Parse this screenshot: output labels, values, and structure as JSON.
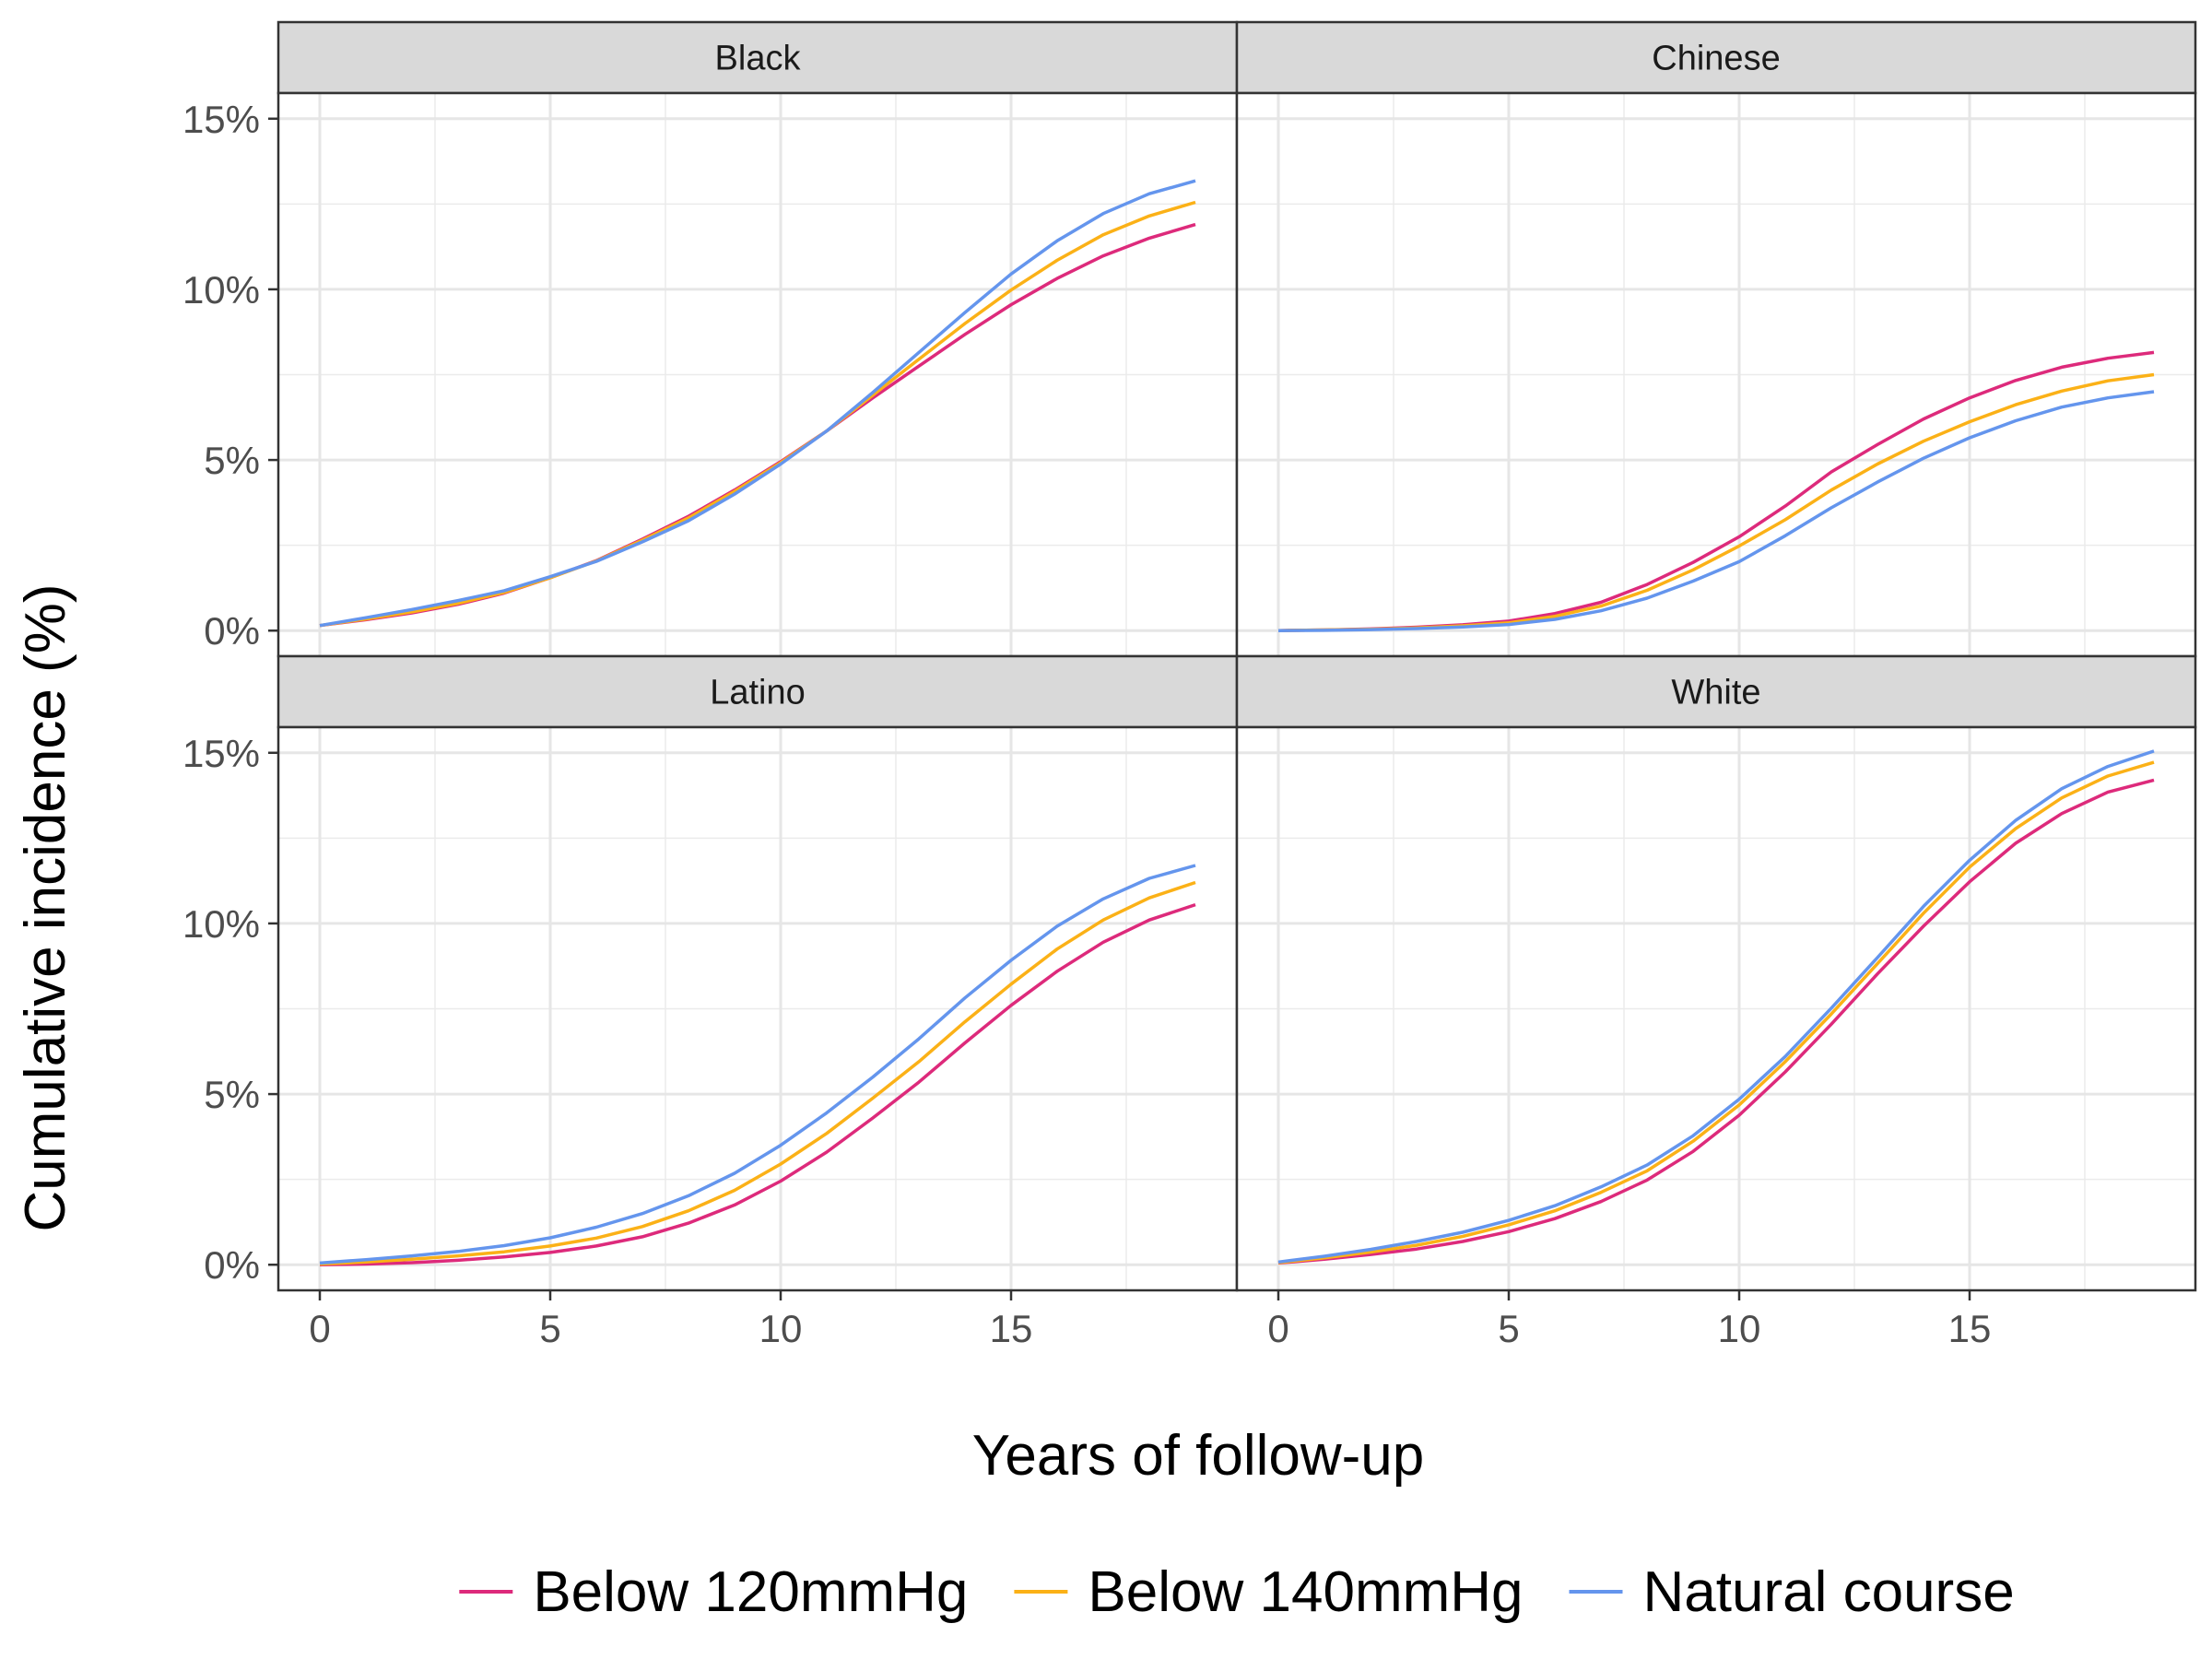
{
  "chart_data": {
    "type": "line",
    "xlabel": "Years of follow-up",
    "ylabel": "Cumulative incidence (%)",
    "xlim": [
      -0.9,
      19.9
    ],
    "ylim": [
      -0.75,
      15.75
    ],
    "x_ticks": [
      0,
      5,
      10,
      15
    ],
    "x_tick_labels": [
      "0",
      "5",
      "10",
      "15"
    ],
    "y_ticks": [
      0,
      5,
      10,
      15
    ],
    "y_tick_labels": [
      "0%",
      "5%",
      "10%",
      "15%"
    ],
    "grid": true,
    "legend_position": "bottom",
    "x": [
      0,
      1,
      2,
      3,
      4,
      5,
      6,
      7,
      8,
      9,
      10,
      11,
      12,
      13,
      14,
      15,
      16,
      17,
      18,
      19
    ],
    "series_styles": [
      {
        "name": "Below 120mmHg",
        "color": "#dd2a7b"
      },
      {
        "name": "Below 140mmHg",
        "color": "#fbb117"
      },
      {
        "name": "Natural course",
        "color": "#6495ed"
      }
    ],
    "panels": [
      {
        "title": "Black",
        "series": [
          {
            "name": "Below 120mmHg",
            "values": [
              0.15,
              0.32,
              0.52,
              0.77,
              1.1,
              1.55,
              2.05,
              2.68,
              3.35,
              4.12,
              4.95,
              5.85,
              6.82,
              7.75,
              8.68,
              9.55,
              10.32,
              10.98,
              11.5,
              11.9
            ]
          },
          {
            "name": "Below 140mmHg",
            "values": [
              0.15,
              0.34,
              0.55,
              0.8,
              1.12,
              1.55,
              2.04,
              2.65,
              3.3,
              4.08,
              4.92,
              5.85,
              6.9,
              7.95,
              9.0,
              9.98,
              10.85,
              11.6,
              12.15,
              12.55
            ]
          },
          {
            "name": "Natural course",
            "values": [
              0.15,
              0.38,
              0.62,
              0.88,
              1.17,
              1.58,
              2.03,
              2.6,
              3.22,
              4.0,
              4.88,
              5.85,
              6.98,
              8.15,
              9.32,
              10.45,
              11.42,
              12.22,
              12.8,
              13.18
            ]
          }
        ]
      },
      {
        "title": "Chinese",
        "series": [
          {
            "name": "Below 120mmHg",
            "values": [
              0.0,
              0.02,
              0.05,
              0.1,
              0.17,
              0.28,
              0.5,
              0.83,
              1.35,
              2.0,
              2.75,
              3.65,
              4.65,
              5.45,
              6.2,
              6.82,
              7.33,
              7.72,
              7.98,
              8.15
            ]
          },
          {
            "name": "Below 140mmHg",
            "values": [
              0.0,
              0.02,
              0.04,
              0.08,
              0.14,
              0.23,
              0.42,
              0.72,
              1.18,
              1.78,
              2.48,
              3.25,
              4.12,
              4.88,
              5.55,
              6.12,
              6.62,
              7.02,
              7.32,
              7.5
            ]
          },
          {
            "name": "Natural course",
            "values": [
              0.0,
              0.01,
              0.03,
              0.06,
              0.11,
              0.18,
              0.33,
              0.58,
              0.95,
              1.45,
              2.02,
              2.78,
              3.6,
              4.35,
              5.05,
              5.65,
              6.15,
              6.55,
              6.82,
              7.0
            ]
          }
        ]
      },
      {
        "title": "Latino",
        "series": [
          {
            "name": "Below 120mmHg",
            "values": [
              0.0,
              0.02,
              0.06,
              0.13,
              0.23,
              0.36,
              0.55,
              0.82,
              1.22,
              1.75,
              2.45,
              3.3,
              4.3,
              5.35,
              6.5,
              7.6,
              8.6,
              9.45,
              10.1,
              10.55
            ]
          },
          {
            "name": "Below 140mmHg",
            "values": [
              0.02,
              0.08,
              0.16,
              0.26,
              0.38,
              0.55,
              0.78,
              1.12,
              1.58,
              2.18,
              2.95,
              3.85,
              4.88,
              5.95,
              7.12,
              8.22,
              9.25,
              10.1,
              10.75,
              11.2
            ]
          },
          {
            "name": "Natural course",
            "values": [
              0.05,
              0.15,
              0.26,
              0.39,
              0.56,
              0.79,
              1.1,
              1.5,
              2.02,
              2.68,
              3.5,
              4.45,
              5.5,
              6.62,
              7.82,
              8.92,
              9.92,
              10.72,
              11.32,
              11.7
            ]
          }
        ]
      },
      {
        "title": "White",
        "series": [
          {
            "name": "Below 120mmHg",
            "values": [
              0.05,
              0.16,
              0.3,
              0.46,
              0.68,
              0.97,
              1.35,
              1.85,
              2.48,
              3.32,
              4.38,
              5.65,
              7.05,
              8.52,
              9.92,
              11.22,
              12.35,
              13.22,
              13.85,
              14.2
            ]
          },
          {
            "name": "Below 140mmHg",
            "values": [
              0.06,
              0.2,
              0.37,
              0.57,
              0.83,
              1.17,
              1.58,
              2.12,
              2.75,
              3.62,
              4.68,
              5.95,
              7.35,
              8.82,
              10.3,
              11.65,
              12.78,
              13.68,
              14.32,
              14.72
            ]
          },
          {
            "name": "Natural course",
            "values": [
              0.08,
              0.25,
              0.45,
              0.68,
              0.95,
              1.3,
              1.73,
              2.28,
              2.92,
              3.78,
              4.85,
              6.1,
              7.52,
              9.0,
              10.5,
              11.85,
              13.02,
              13.95,
              14.6,
              15.05
            ]
          }
        ]
      }
    ]
  }
}
